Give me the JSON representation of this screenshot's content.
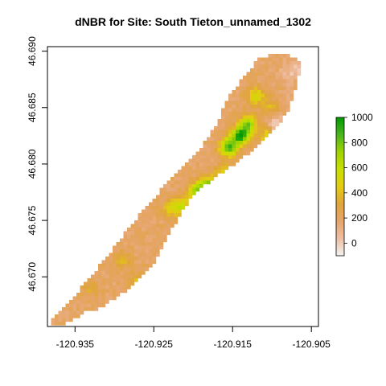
{
  "title": "dNBR for Site: South Tieton_unnamed_1302",
  "chart_data": {
    "type": "heatmap",
    "title": "dNBR for Site: South Tieton_unnamed_1302",
    "xlabel": "",
    "ylabel": "",
    "xlim": [
      -120.9385,
      -120.9041
    ],
    "ylim": [
      46.6656,
      46.6904
    ],
    "x_ticks": [
      -120.935,
      -120.925,
      -120.915,
      -120.905
    ],
    "x_tick_labels": [
      "-120.935",
      "-120.925",
      "-120.915",
      "-120.905"
    ],
    "y_ticks": [
      46.67,
      46.675,
      46.68,
      46.685,
      46.69
    ],
    "y_tick_labels": [
      "46.670",
      "46.675",
      "46.680",
      "46.685",
      "46.690"
    ],
    "legend": {
      "placement": "right",
      "range": [
        -100,
        1000
      ],
      "ticks": [
        0,
        200,
        400,
        600,
        800,
        1000
      ],
      "tick_labels": [
        "0",
        "200",
        "400",
        "600",
        "800",
        "1000"
      ],
      "colors": [
        "#F2F2F2",
        "#EEBEA2",
        "#E6A56B",
        "#E0A53A",
        "#E3CC12",
        "#C8E000",
        "#A0D300",
        "#4AB51E",
        "#009A00"
      ]
    },
    "burn_polygon": [
      [
        -120.9372,
        46.6656
      ],
      [
        -120.9355,
        46.666
      ],
      [
        -120.934,
        46.6668
      ],
      [
        -120.9318,
        46.6672
      ],
      [
        -120.928,
        46.669
      ],
      [
        -120.925,
        46.6712
      ],
      [
        -120.9225,
        46.6745
      ],
      [
        -120.92,
        46.6772
      ],
      [
        -120.917,
        46.679
      ],
      [
        -120.9145,
        46.68
      ],
      [
        -120.912,
        46.6815
      ],
      [
        -120.9098,
        46.683
      ],
      [
        -120.908,
        46.6845
      ],
      [
        -120.9068,
        46.687
      ],
      [
        -120.9062,
        46.689
      ],
      [
        -120.908,
        46.6898
      ],
      [
        -120.9115,
        46.6895
      ],
      [
        -120.9135,
        46.6878
      ],
      [
        -120.9155,
        46.686
      ],
      [
        -120.917,
        46.6835
      ],
      [
        -120.9195,
        46.681
      ],
      [
        -120.9225,
        46.679
      ],
      [
        -120.925,
        46.677
      ],
      [
        -120.928,
        46.6745
      ],
      [
        -120.9305,
        46.6722
      ],
      [
        -120.933,
        46.67
      ],
      [
        -120.9355,
        46.668
      ],
      [
        -120.9375,
        46.6666
      ],
      [
        -120.9385,
        46.6656
      ]
    ],
    "zones": [
      {
        "lon": -120.914,
        "lat": 46.6825,
        "value": 950
      },
      {
        "lon": -120.9155,
        "lat": 46.6815,
        "value": 880
      },
      {
        "lon": -120.913,
        "lat": 46.6835,
        "value": 720
      },
      {
        "lon": -120.916,
        "lat": 46.679,
        "value": 620
      },
      {
        "lon": -120.918,
        "lat": 46.678,
        "value": 800
      },
      {
        "lon": -120.9195,
        "lat": 46.6775,
        "value": 750
      },
      {
        "lon": -120.9215,
        "lat": 46.6763,
        "value": 560
      },
      {
        "lon": -120.9095,
        "lat": 46.6815,
        "value": 560
      },
      {
        "lon": -120.9105,
        "lat": 46.6825,
        "value": 500
      },
      {
        "lon": -120.912,
        "lat": 46.686,
        "value": 520
      },
      {
        "lon": -120.91,
        "lat": 46.685,
        "value": 380
      },
      {
        "lon": -120.923,
        "lat": 46.676,
        "value": 420
      },
      {
        "lon": -120.929,
        "lat": 46.6715,
        "value": 360
      },
      {
        "lon": -120.933,
        "lat": 46.669,
        "value": 330
      },
      {
        "lon": -120.927,
        "lat": 46.6695,
        "value": 400
      },
      {
        "lon": -120.908,
        "lat": 46.688,
        "value": 80
      },
      {
        "lon": -120.908,
        "lat": 46.6855,
        "value": 120
      },
      {
        "lon": -120.9065,
        "lat": 46.6885,
        "value": 20
      },
      {
        "lon": -120.9095,
        "lat": 46.6835,
        "value": -20
      },
      {
        "lon": -120.936,
        "lat": 46.6665,
        "value": 180
      }
    ]
  }
}
